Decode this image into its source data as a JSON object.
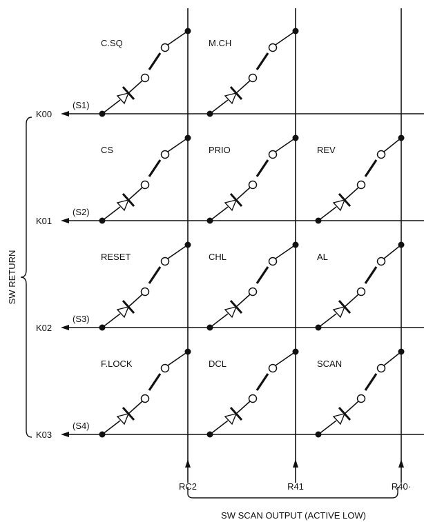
{
  "diagram": {
    "rows": [
      {
        "return_label": "K00",
        "switch_label": "(S1)"
      },
      {
        "return_label": "K01",
        "switch_label": "(S2)"
      },
      {
        "return_label": "K02",
        "switch_label": "(S3)"
      },
      {
        "return_label": "K03",
        "switch_label": "(S4)"
      }
    ],
    "columns": [
      {
        "scan_label": "RC2"
      },
      {
        "scan_label": "R41"
      },
      {
        "scan_label": "R40·"
      }
    ],
    "keys": [
      [
        "C.SQ",
        "M.CH",
        ""
      ],
      [
        "CS",
        "PRIO",
        "REV"
      ],
      [
        "RESET",
        "CHL",
        "AL"
      ],
      [
        "F.LOCK",
        "DCL",
        "SCAN"
      ]
    ],
    "return_title": "SW RETURN",
    "scan_title": "SW SCAN OUTPUT (ACTIVE LOW)"
  }
}
